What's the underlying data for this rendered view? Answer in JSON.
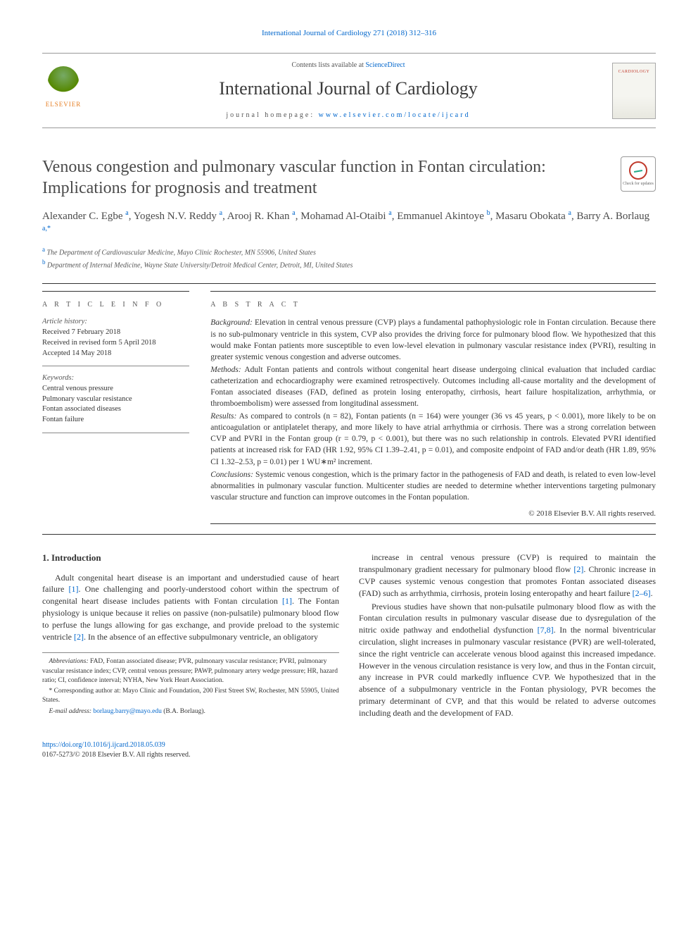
{
  "top_link": {
    "prefix": "International Journal of Cardiology 271 (2018) 312–316",
    "url_text": "International Journal of Cardiology 271 (2018) 312–316"
  },
  "header": {
    "contents_prefix": "Contents lists available at ",
    "contents_link": "ScienceDirect",
    "journal_name": "International Journal of Cardiology",
    "homepage_prefix": "journal homepage: ",
    "homepage_link": "www.elsevier.com/locate/ijcard",
    "publisher_name": "ELSEVIER"
  },
  "article": {
    "title": "Venous congestion and pulmonary vascular function in Fontan circulation: Implications for prognosis and treatment",
    "crossmark_label": "Check for updates"
  },
  "authors_line": "Alexander C. Egbe <sup>a</sup>, Yogesh N.V. Reddy <sup>a</sup>, Arooj R. Khan <sup>a</sup>, Mohamad Al-Otaibi <sup>a</sup>, Emmanuel Akintoye <sup>b</sup>, Masaru Obokata <sup>a</sup>, Barry A. Borlaug <sup>a,*</sup>",
  "affiliations": [
    {
      "sup": "a",
      "text": "The Department of Cardiovascular Medicine, Mayo Clinic Rochester, MN 55906, United States"
    },
    {
      "sup": "b",
      "text": "Department of Internal Medicine, Wayne State University/Detroit Medical Center, Detroit, MI, United States"
    }
  ],
  "article_info": {
    "head": "A R T I C L E  I N F O",
    "history_label": "Article history:",
    "history": [
      "Received 7 February 2018",
      "Received in revised form 5 April 2018",
      "Accepted 14 May 2018"
    ],
    "keywords_label": "Keywords:",
    "keywords": [
      "Central venous pressure",
      "Pulmonary vascular resistance",
      "Fontan associated diseases",
      "Fontan failure"
    ]
  },
  "abstract": {
    "head": "A B S T R A C T",
    "paragraphs": [
      {
        "label": "Background:",
        "text": " Elevation in central venous pressure (CVP) plays a fundamental pathophysiologic role in Fontan circulation. Because there is no sub-pulmonary ventricle in this system, CVP also provides the driving force for pulmonary blood flow. We hypothesized that this would make Fontan patients more susceptible to even low-level elevation in pulmonary vascular resistance index (PVRI), resulting in greater systemic venous congestion and adverse outcomes."
      },
      {
        "label": "Methods:",
        "text": " Adult Fontan patients and controls without congenital heart disease undergoing clinical evaluation that included cardiac catheterization and echocardiography were examined retrospectively. Outcomes including all-cause mortality and the development of Fontan associated diseases (FAD, defined as protein losing enteropathy, cirrhosis, heart failure hospitalization, arrhythmia, or thromboembolism) were assessed from longitudinal assessment."
      },
      {
        "label": "Results:",
        "text": " As compared to controls (n = 82), Fontan patients (n = 164) were younger (36 vs 45 years, p < 0.001), more likely to be on anticoagulation or antiplatelet therapy, and more likely to have atrial arrhythmia or cirrhosis. There was a strong correlation between CVP and PVRI in the Fontan group (r = 0.79, p < 0.001), but there was no such relationship in controls. Elevated PVRI identified patients at increased risk for FAD (HR 1.92, 95% CI 1.39–2.41, p = 0.01), and composite endpoint of FAD and/or death (HR 1.89, 95% CI 1.32–2.53, p = 0.01) per 1 WU∗m² increment."
      },
      {
        "label": "Conclusions:",
        "text": " Systemic venous congestion, which is the primary factor in the pathogenesis of FAD and death, is related to even low-level abnormalities in pulmonary vascular function. Multicenter studies are needed to determine whether interventions targeting pulmonary vascular structure and function can improve outcomes in the Fontan population."
      }
    ],
    "copyright": "© 2018 Elsevier B.V. All rights reserved."
  },
  "body": {
    "heading": "1. Introduction",
    "p1": "Adult congenital heart disease is an important and understudied cause of heart failure [1]. One challenging and poorly-understood cohort within the spectrum of congenital heart disease includes patients with Fontan circulation [1]. The Fontan physiology is unique because it relies on passive (non-pulsatile) pulmonary blood flow to perfuse the lungs allowing for gas exchange, and provide preload to the systemic ventricle [2]. In the absence of an effective subpulmonary ventricle, an obligatory",
    "p2": "increase in central venous pressure (CVP) is required to maintain the transpulmonary gradient necessary for pulmonary blood flow [2]. Chronic increase in CVP causes systemic venous congestion that promotes Fontan associated diseases (FAD) such as arrhythmia, cirrhosis, protein losing enteropathy and heart failure [2–6].",
    "p3": "Previous studies have shown that non-pulsatile pulmonary blood flow as with the Fontan circulation results in pulmonary vascular disease due to dysregulation of the nitric oxide pathway and endothelial dysfunction [7,8]. In the normal biventricular circulation, slight increases in pulmonary vascular resistance (PVR) are well-tolerated, since the right ventricle can accelerate venous blood against this increased impedance. However in the venous circulation resistance is very low, and thus in the Fontan circuit, any increase in PVR could markedly influence CVP. We hypothesized that in the absence of a subpulmonary ventricle in the Fontan physiology, PVR becomes the primary determinant of CVP, and that this would be related to adverse outcomes including death and the development of FAD."
  },
  "footnotes": {
    "abbrev_label": "Abbreviations:",
    "abbrev_text": " FAD, Fontan associated disease; PVR, pulmonary vascular resistance; PVRI, pulmonary vascular resistance index; CVP, central venous pressure; PAWP, pulmonary artery wedge pressure; HR, hazard ratio; CI, confidence interval; NYHA, New York Heart Association.",
    "corr_label": "*",
    "corr_text": " Corresponding author at: Mayo Clinic and Foundation, 200 First Street SW, Rochester, MN 55905, United States.",
    "email_label": "E-mail address:",
    "email_link": "borlaug.barry@mayo.edu",
    "email_suffix": " (B.A. Borlaug)."
  },
  "footer": {
    "doi": "https://doi.org/10.1016/j.ijcard.2018.05.039",
    "issn_line": "0167-5273/© 2018 Elsevier B.V. All rights reserved."
  },
  "colors": {
    "link": "#0066cc",
    "text": "#333333",
    "muted": "#555555",
    "rule": "#333333",
    "orange": "#e67e22",
    "red": "#c0392b"
  }
}
